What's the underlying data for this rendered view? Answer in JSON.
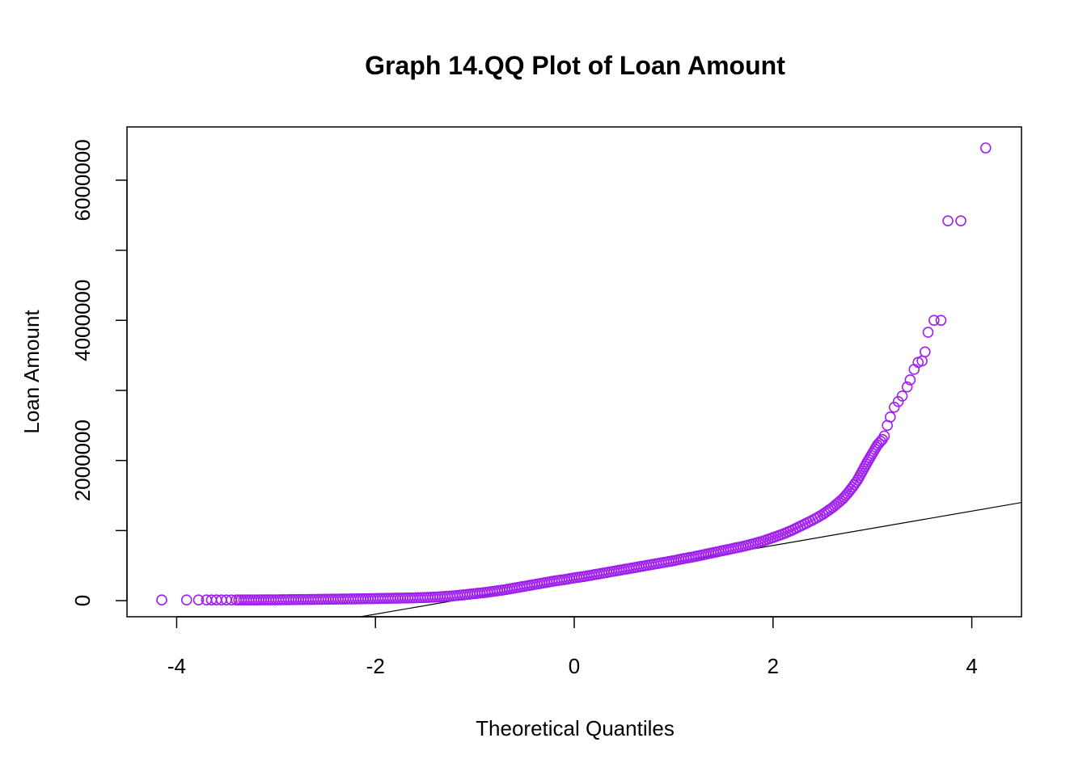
{
  "chart_data": {
    "type": "scatter",
    "title": "Graph 14.QQ Plot of Loan Amount",
    "xlabel": "Theoretical Quantiles",
    "ylabel": "Loan Amount",
    "xlim": [
      -4.5,
      4.5
    ],
    "ylim": [
      -230000,
      6760000
    ],
    "x_ticks": [
      -4,
      -2,
      0,
      2,
      4
    ],
    "x_tick_labels": [
      "-4",
      "-2",
      "0",
      "2",
      "4"
    ],
    "y_ticks": [
      0,
      1000000,
      2000000,
      3000000,
      4000000,
      5000000,
      6000000
    ],
    "y_tick_labels": [
      "0",
      "",
      "2000000",
      "",
      "4000000",
      "",
      "6000000"
    ],
    "grid": false,
    "point_color": "#A020F0",
    "line_color": "#000000",
    "reference_line": {
      "x": [
        -2.15,
        4.5
      ],
      "y": [
        -230000,
        1400000
      ]
    },
    "series": [
      {
        "points": [
          [
            -4.15,
            10000
          ],
          [
            -3.9,
            10000
          ],
          [
            -3.78,
            10000
          ],
          [
            -3.7,
            10000
          ],
          [
            -3.65,
            10000
          ],
          [
            -3.6,
            10000
          ],
          [
            -3.55,
            10000
          ],
          [
            -3.5,
            10000
          ],
          [
            -3.45,
            10000
          ],
          [
            -3.4,
            10000
          ],
          [
            -3.3,
            10000
          ],
          [
            -3.2,
            10000
          ],
          [
            -3.1,
            12000
          ],
          [
            -3.0,
            12000
          ],
          [
            -2.9,
            13000
          ],
          [
            -2.8,
            15000
          ],
          [
            -2.6,
            18000
          ],
          [
            -2.4,
            22000
          ],
          [
            -2.2,
            25000
          ],
          [
            -2.0,
            30000
          ],
          [
            -1.8,
            35000
          ],
          [
            -1.6,
            40000
          ],
          [
            -1.5,
            45000
          ],
          [
            -1.4,
            50000
          ],
          [
            -1.3,
            60000
          ],
          [
            -1.2,
            70000
          ],
          [
            -1.1,
            85000
          ],
          [
            -1.0,
            100000
          ],
          [
            -0.9,
            115000
          ],
          [
            -0.8,
            135000
          ],
          [
            -0.7,
            155000
          ],
          [
            -0.6,
            180000
          ],
          [
            -0.5,
            205000
          ],
          [
            -0.4,
            230000
          ],
          [
            -0.3,
            255000
          ],
          [
            -0.2,
            280000
          ],
          [
            -0.1,
            300000
          ],
          [
            0.0,
            325000
          ],
          [
            0.1,
            345000
          ],
          [
            0.2,
            370000
          ],
          [
            0.3,
            395000
          ],
          [
            0.4,
            420000
          ],
          [
            0.5,
            445000
          ],
          [
            0.6,
            470000
          ],
          [
            0.7,
            495000
          ],
          [
            0.8,
            520000
          ],
          [
            0.9,
            545000
          ],
          [
            1.0,
            570000
          ],
          [
            1.1,
            600000
          ],
          [
            1.2,
            625000
          ],
          [
            1.3,
            655000
          ],
          [
            1.4,
            685000
          ],
          [
            1.5,
            715000
          ],
          [
            1.6,
            745000
          ],
          [
            1.7,
            775000
          ],
          [
            1.8,
            810000
          ],
          [
            1.9,
            850000
          ],
          [
            2.0,
            900000
          ],
          [
            2.1,
            950000
          ],
          [
            2.2,
            1010000
          ],
          [
            2.3,
            1080000
          ],
          [
            2.4,
            1150000
          ],
          [
            2.5,
            1230000
          ],
          [
            2.6,
            1330000
          ],
          [
            2.7,
            1450000
          ],
          [
            2.75,
            1530000
          ],
          [
            2.8,
            1620000
          ],
          [
            2.85,
            1720000
          ],
          [
            2.9,
            1850000
          ],
          [
            2.95,
            1980000
          ],
          [
            3.0,
            2100000
          ],
          [
            3.05,
            2220000
          ],
          [
            3.1,
            2300000
          ],
          [
            3.12,
            2350000
          ],
          [
            3.15,
            2500000
          ],
          [
            3.18,
            2620000
          ],
          [
            3.22,
            2760000
          ],
          [
            3.26,
            2840000
          ],
          [
            3.3,
            2920000
          ],
          [
            3.35,
            3050000
          ],
          [
            3.38,
            3150000
          ],
          [
            3.42,
            3300000
          ],
          [
            3.46,
            3400000
          ],
          [
            3.5,
            3420000
          ],
          [
            3.53,
            3550000
          ],
          [
            3.56,
            3830000
          ],
          [
            3.62,
            4000000
          ],
          [
            3.69,
            4000000
          ],
          [
            3.76,
            5420000
          ],
          [
            3.89,
            5420000
          ],
          [
            4.14,
            6460000
          ]
        ]
      }
    ]
  }
}
